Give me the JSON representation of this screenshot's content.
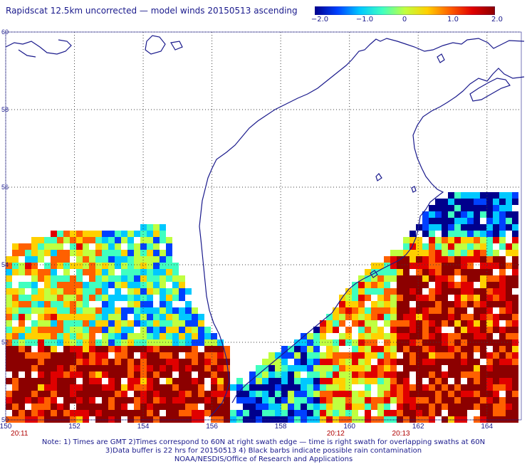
{
  "title": "Rapidscat 12.5km uncorrected — model winds 20150513 ascending",
  "colorbar": {
    "min": -2.0,
    "max": 2.0,
    "colors": [
      "#00008c",
      "#0040ff",
      "#00c8ff",
      "#40ffc0",
      "#c0ff40",
      "#ffd000",
      "#ff6000",
      "#e00000",
      "#8c0000"
    ],
    "labels": [
      "−2.0",
      "−1.0",
      "0",
      "1.0",
      "2.0"
    ]
  },
  "map": {
    "lon_range": [
      150,
      165
    ],
    "lat_range": [
      50,
      60
    ],
    "x_tick_labels": [
      "150",
      "152",
      "154",
      "156",
      "158",
      "160",
      "162",
      "164"
    ],
    "y_tick_labels": [
      "60",
      "58",
      "56",
      "54",
      "52",
      "50"
    ],
    "time_labels": [
      "20:11",
      "20:12",
      "20:13"
    ],
    "coast_color": "#1a1a8c",
    "grid_color": "#404040"
  },
  "notes": [
    "Note: 1) Times are GMT 2)Times correspond to 60N at right swath edge — time is right swath for overlapping swaths at 60N",
    "3)Data buffer is 22 hrs for 20150513 4) Black barbs indicate possible rain contamination",
    "NOAA/NESDIS/Office of Research and Applications"
  ]
}
